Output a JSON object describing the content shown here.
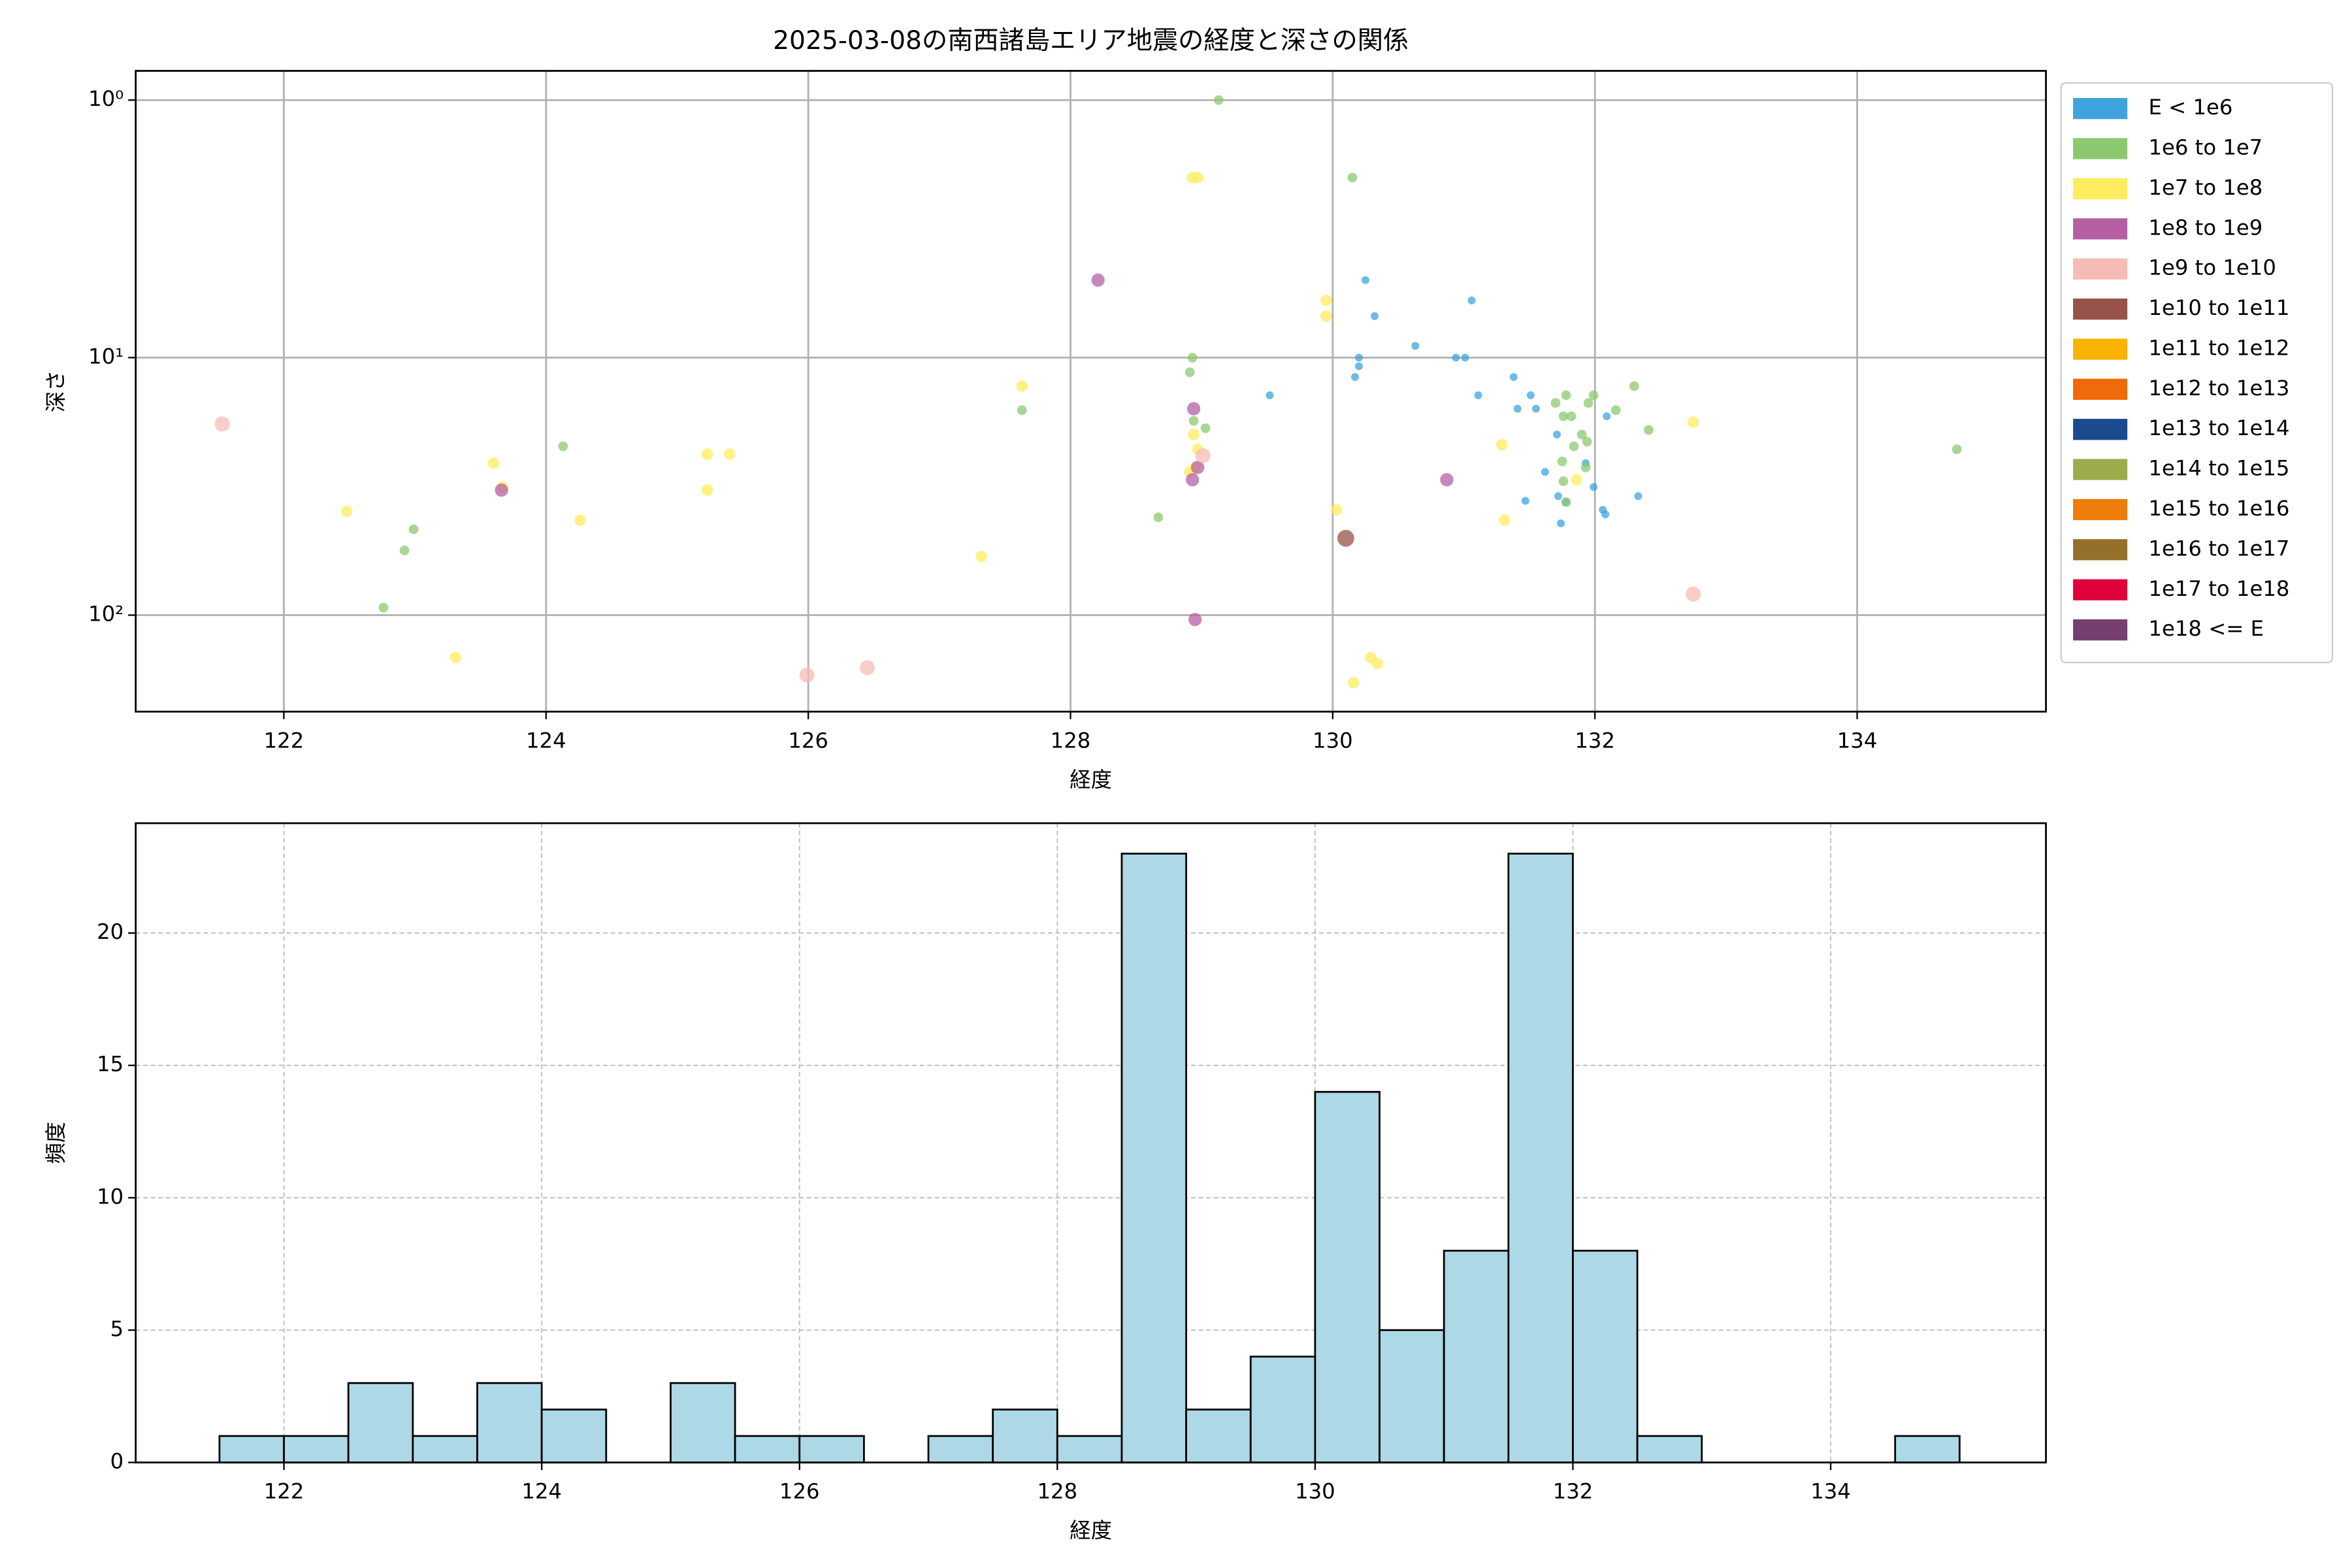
{
  "chart_data": [
    {
      "type": "scatter",
      "title": "2025-03-08の南西諸島エリア地震の経度と深さの関係",
      "xlabel": "経度",
      "ylabel": "深さ",
      "xlim": [
        120.87,
        135.44
      ],
      "xticks": [
        122,
        124,
        126,
        128,
        130,
        132,
        134
      ],
      "ylim": [
        0.77,
        237
      ],
      "yscale": "log",
      "yinverted": true,
      "yticks": [
        {
          "value": 1,
          "label": "10⁰"
        },
        {
          "value": 10,
          "label": "10¹"
        },
        {
          "value": 100,
          "label": "10²"
        }
      ],
      "grid": true,
      "legend": "outside right",
      "series": [
        {
          "name": "E < 1e6",
          "color": "#3fa3de",
          "x": [
            130.25,
            130.32,
            130.2,
            130.2,
            130.17,
            130.63,
            131.06,
            130.94,
            131.01,
            129.52,
            131.11,
            131.38,
            131.51,
            131.41,
            131.55,
            131.71,
            131.62,
            131.93,
            131.47,
            131.72,
            131.78,
            131.74,
            131.99,
            132.06,
            132.08,
            132.09,
            132.33
          ],
          "values": [
            5.0,
            6.9,
            10,
            10.8,
            11.9,
            9.0,
            6.0,
            10,
            10,
            14.0,
            14.0,
            11.9,
            14.0,
            15.8,
            15.8,
            19.9,
            27.8,
            25.7,
            36.0,
            34.5,
            36.4,
            44.0,
            31.8,
            39.0,
            40.6,
            16.9,
            34.5
          ]
        },
        {
          "name": "1e6 to 1e7",
          "color": "#8cc870",
          "x": [
            129.13,
            130.15,
            128.93,
            128.91,
            127.63,
            129.03,
            128.94,
            124.13,
            122.76,
            122.92,
            122.99,
            128.67,
            131.7,
            131.78,
            131.76,
            131.82,
            132.3,
            132.16,
            131.99,
            131.95,
            131.9,
            131.94,
            131.84,
            131.75,
            131.76,
            131.93,
            132.41,
            131.78,
            134.76
          ],
          "values": [
            1.0,
            2.0,
            10,
            11.4,
            16.0,
            18.8,
            17.6,
            22.1,
            93.5,
            56.1,
            46.4,
            41.7,
            15.0,
            14.0,
            16.9,
            16.9,
            12.9,
            16.0,
            14.0,
            15.0,
            19.9,
            21.2,
            22.1,
            25.3,
            30.2,
            26.7,
            19.1,
            36.4,
            22.7
          ]
        },
        {
          "name": "1e7 to 1e8",
          "color": "#fdec5d",
          "x": [
            128.93,
            128.97,
            129.95,
            129.95,
            127.63,
            123.6,
            123.67,
            125.23,
            125.4,
            125.23,
            122.48,
            124.26,
            127.32,
            123.31,
            128.94,
            128.97,
            128.91,
            128.95,
            130.03,
            131.29,
            131.31,
            131.86,
            132.75,
            130.29,
            130.34,
            130.16
          ],
          "values": [
            2.0,
            2.0,
            6.0,
            6.9,
            12.9,
            25.7,
            31.8,
            23.7,
            23.7,
            32.7,
            39.5,
            42.8,
            59.2,
            146,
            19.9,
            22.7,
            27.8,
            26.7,
            39.0,
            21.8,
            42.8,
            29.8,
            17.8,
            146,
            154,
            183
          ]
        },
        {
          "name": "1e8 to 1e9",
          "color": "#b55fa3",
          "x": [
            128.21,
            128.94,
            123.66,
            128.97,
            128.93,
            128.95,
            130.87
          ],
          "values": [
            5.0,
            15.8,
            32.7,
            26.7,
            29.8,
            104,
            29.8
          ]
        },
        {
          "name": "1e9 to 1e10",
          "color": "#f5bcb5",
          "x": [
            121.53,
            125.99,
            126.45,
            129.01,
            132.75
          ],
          "values": [
            18.1,
            171,
            160,
            24.0,
            82.8
          ]
        },
        {
          "name": "1e10 to 1e11",
          "color": "#97524a",
          "x": [
            130.1
          ],
          "values": [
            50.3
          ]
        },
        {
          "name": "1e11 to 1e12",
          "color": "#f9b305",
          "x": [],
          "values": []
        },
        {
          "name": "1e12 to 1e13",
          "color": "#ee6a0a",
          "x": [],
          "values": []
        },
        {
          "name": "1e13 to 1e14",
          "color": "#1c4a8f",
          "x": [],
          "values": []
        },
        {
          "name": "1e14 to 1e15",
          "color": "#9aac4c",
          "x": [],
          "values": []
        },
        {
          "name": "1e15 to 1e16",
          "color": "#ee7d0a",
          "x": [],
          "values": []
        },
        {
          "name": "1e16 to 1e17",
          "color": "#95702a",
          "x": [],
          "values": []
        },
        {
          "name": "1e17 to 1e18",
          "color": "#e0003c",
          "x": [],
          "values": []
        },
        {
          "name": "1e18 <= E",
          "color": "#773f6e",
          "x": [],
          "values": []
        }
      ]
    },
    {
      "type": "histogram",
      "xlabel": "経度",
      "ylabel": "頻度",
      "color": "#add8e6",
      "edgecolor": "#000000",
      "xlim": [
        120.85,
        135.67
      ],
      "xticks": [
        122,
        124,
        126,
        128,
        130,
        132,
        134
      ],
      "ylim": [
        0,
        24.15
      ],
      "yticks": [
        0,
        5,
        10,
        15,
        20
      ],
      "grid": true,
      "bins": [
        121.5,
        122,
        122.5,
        123,
        123.5,
        124,
        124.5,
        125,
        125.5,
        126,
        126.5,
        127,
        127.5,
        128,
        128.5,
        129,
        129.5,
        130,
        130.5,
        131,
        131.5,
        132,
        132.5,
        133,
        133.5,
        134,
        134.5,
        135
      ],
      "values": [
        1,
        1,
        3,
        1,
        3,
        2,
        0,
        3,
        1,
        1,
        0,
        1,
        2,
        1,
        23,
        2,
        4,
        14,
        5,
        8,
        23,
        8,
        1,
        0,
        0,
        0,
        1
      ]
    }
  ]
}
